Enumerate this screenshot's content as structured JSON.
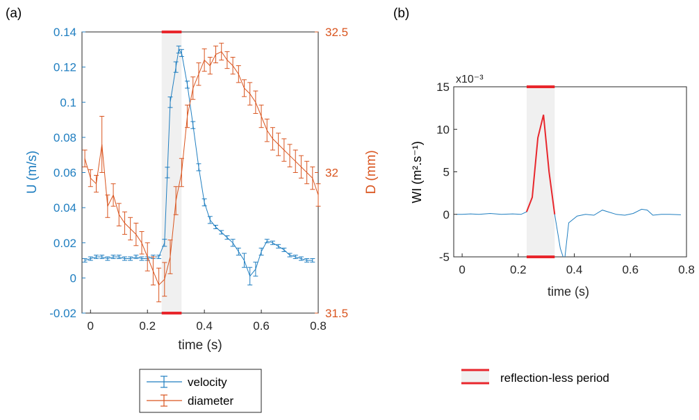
{
  "panels": {
    "a_label": "(a)",
    "b_label": "(b)"
  },
  "colors": {
    "velocity": "#1f7ec0",
    "diameter": "#d9541e",
    "highlight": "#e8262c",
    "shade": "#f0f0f0",
    "axis": "#262626",
    "wi_line": "#1f7ec0"
  },
  "legend_a": {
    "velocity": "velocity",
    "diameter": "diameter"
  },
  "legend_b": {
    "reflection": "reflection-less period"
  },
  "chart_data": [
    {
      "id": "a",
      "type": "line",
      "xlabel": "time (s)",
      "ylabel": "U (m/s)",
      "y2label": "D (mm)",
      "xlim": [
        -0.03,
        0.8
      ],
      "ylim": [
        -0.02,
        0.14
      ],
      "y2lim": [
        31.5,
        32.5
      ],
      "xticks": [
        "0",
        "0.2",
        "0.4",
        "0.6",
        "0.8"
      ],
      "yticks": [
        "-0.02",
        "0",
        "0.02",
        "0.04",
        "0.06",
        "0.08",
        "0.1",
        "0.12",
        "0.14"
      ],
      "y2ticks": [
        "31.5",
        "32",
        "32.5"
      ],
      "shaded_region": [
        0.25,
        0.32
      ],
      "series": [
        {
          "name": "velocity",
          "axis": "left",
          "error_bars": true,
          "x": [
            -0.02,
            0.0,
            0.02,
            0.04,
            0.06,
            0.08,
            0.1,
            0.12,
            0.14,
            0.16,
            0.18,
            0.2,
            0.22,
            0.24,
            0.26,
            0.27,
            0.28,
            0.3,
            0.31,
            0.32,
            0.34,
            0.36,
            0.38,
            0.4,
            0.42,
            0.44,
            0.46,
            0.48,
            0.5,
            0.52,
            0.54,
            0.56,
            0.58,
            0.6,
            0.62,
            0.64,
            0.66,
            0.68,
            0.7,
            0.72,
            0.74,
            0.76,
            0.78
          ],
          "y": [
            0.01,
            0.011,
            0.012,
            0.012,
            0.011,
            0.012,
            0.012,
            0.011,
            0.011,
            0.012,
            0.011,
            0.011,
            0.012,
            0.012,
            0.02,
            0.06,
            0.1,
            0.12,
            0.13,
            0.128,
            0.11,
            0.087,
            0.063,
            0.043,
            0.033,
            0.029,
            0.026,
            0.023,
            0.02,
            0.015,
            0.01,
            0.001,
            0.005,
            0.015,
            0.021,
            0.02,
            0.018,
            0.016,
            0.013,
            0.012,
            0.011,
            0.01,
            0.01
          ],
          "err": [
            0.001,
            0.001,
            0.001,
            0.001,
            0.001,
            0.001,
            0.001,
            0.001,
            0.001,
            0.001,
            0.001,
            0.001,
            0.001,
            0.001,
            0.002,
            0.003,
            0.003,
            0.003,
            0.002,
            0.002,
            0.002,
            0.002,
            0.002,
            0.002,
            0.002,
            0.001,
            0.001,
            0.001,
            0.002,
            0.002,
            0.004,
            0.005,
            0.004,
            0.002,
            0.001,
            0.001,
            0.001,
            0.001,
            0.001,
            0.001,
            0.001,
            0.001,
            0.001
          ]
        },
        {
          "name": "diameter",
          "axis": "right",
          "error_bars": true,
          "x": [
            -0.02,
            0.0,
            0.02,
            0.04,
            0.06,
            0.08,
            0.1,
            0.12,
            0.14,
            0.16,
            0.18,
            0.2,
            0.22,
            0.24,
            0.26,
            0.28,
            0.3,
            0.32,
            0.34,
            0.36,
            0.38,
            0.4,
            0.42,
            0.44,
            0.46,
            0.48,
            0.5,
            0.52,
            0.54,
            0.56,
            0.58,
            0.6,
            0.62,
            0.64,
            0.66,
            0.68,
            0.7,
            0.72,
            0.74,
            0.76,
            0.78,
            0.8
          ],
          "y": [
            32.05,
            31.98,
            31.96,
            32.1,
            31.88,
            31.92,
            31.85,
            31.82,
            31.8,
            31.78,
            31.75,
            31.7,
            31.65,
            31.6,
            31.62,
            31.7,
            31.9,
            32.0,
            32.2,
            32.3,
            32.35,
            32.4,
            32.38,
            32.42,
            32.43,
            32.4,
            32.38,
            32.35,
            32.3,
            32.28,
            32.25,
            32.2,
            32.15,
            32.12,
            32.1,
            32.08,
            32.06,
            32.04,
            32.02,
            32.0,
            31.98,
            31.92
          ],
          "err": [
            0.03,
            0.03,
            0.03,
            0.1,
            0.04,
            0.04,
            0.04,
            0.04,
            0.04,
            0.04,
            0.04,
            0.05,
            0.05,
            0.06,
            0.06,
            0.06,
            0.05,
            0.05,
            0.04,
            0.04,
            0.04,
            0.04,
            0.03,
            0.03,
            0.03,
            0.03,
            0.03,
            0.03,
            0.03,
            0.04,
            0.04,
            0.04,
            0.04,
            0.04,
            0.04,
            0.04,
            0.04,
            0.04,
            0.04,
            0.04,
            0.04,
            0.04
          ]
        }
      ]
    },
    {
      "id": "b",
      "type": "line",
      "xlabel": "time (s)",
      "ylabel": "WI (m².s⁻¹)",
      "exponent_label": "x10⁻³",
      "xlim": [
        -0.03,
        0.8
      ],
      "ylim": [
        -5,
        15
      ],
      "xticks": [
        "0",
        "0.2",
        "0.4",
        "0.6",
        "0.8"
      ],
      "yticks": [
        "-5",
        "0",
        "5",
        "10",
        "15"
      ],
      "shaded_region": [
        0.23,
        0.33
      ],
      "series": [
        {
          "name": "WI",
          "x": [
            -0.02,
            0.0,
            0.03,
            0.06,
            0.1,
            0.14,
            0.18,
            0.21,
            0.23,
            0.25,
            0.27,
            0.29,
            0.31,
            0.33,
            0.35,
            0.365,
            0.38,
            0.41,
            0.44,
            0.47,
            0.5,
            0.52,
            0.55,
            0.58,
            0.61,
            0.64,
            0.66,
            0.68,
            0.71,
            0.74,
            0.78
          ],
          "y": [
            0.0,
            0.0,
            0.05,
            0.0,
            0.1,
            0.0,
            0.05,
            0.0,
            0.3,
            2.0,
            9.0,
            11.7,
            5.0,
            0.0,
            -4.0,
            -5.5,
            -1.0,
            -0.2,
            0.0,
            -0.1,
            0.5,
            0.3,
            0.0,
            -0.1,
            0.1,
            0.6,
            0.5,
            -0.1,
            0.0,
            0.0,
            -0.05
          ]
        },
        {
          "name": "reflection-less period",
          "x": [
            0.23,
            0.25,
            0.27,
            0.29,
            0.31,
            0.33
          ],
          "y": [
            0.3,
            2.0,
            9.0,
            11.7,
            5.0,
            0.0
          ]
        }
      ]
    }
  ]
}
